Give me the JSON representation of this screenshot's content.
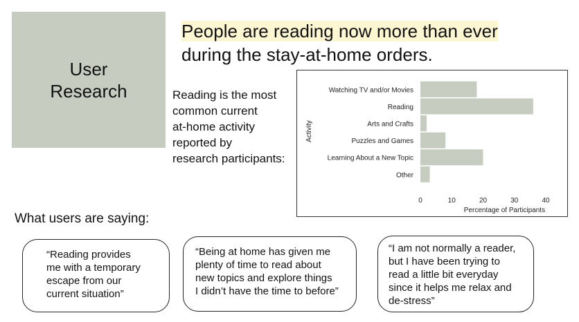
{
  "title_box": {
    "line1": "User",
    "line2": "Research"
  },
  "headline": {
    "line1": "People are reading now more than ever",
    "line2": "during the stay-at-home orders."
  },
  "summary": {
    "lines": [
      "Reading is the most",
      "common current",
      "at-home activity",
      "reported by",
      "research participants:"
    ]
  },
  "section_label": "What users are saying:",
  "quotes": [
    {
      "lines": [
        "“Reading provides",
        "me with a temporary",
        "escape from our",
        "current situation”"
      ]
    },
    {
      "lines": [
        "“Being at home has given me",
        "plenty of time to read about",
        "new topics and explore things",
        "I didn’t have the time to before”"
      ]
    },
    {
      "lines": [
        "“I am not normally a reader,",
        "but I have been trying to",
        "read a little bit everyday",
        "since it helps me relax and",
        "de-stress”"
      ]
    }
  ],
  "colors": {
    "title_box": "#c6cdc0",
    "bar": "#c6cdc0",
    "highlight": "#fdf6d3"
  },
  "chart_data": {
    "type": "bar",
    "orientation": "horizontal",
    "categories": [
      "Watching TV and/or Movies",
      "Reading",
      "Arts and Crafts",
      "Puzzles and Games",
      "Learning About a New Topic",
      "Other"
    ],
    "values": [
      18,
      36,
      2,
      8,
      20,
      3
    ],
    "xlabel": "Percentage of Participants",
    "ylabel": "Activity",
    "xticks": [
      "0",
      "10",
      "20",
      "30",
      "40"
    ],
    "xlim": [
      0,
      40
    ],
    "grid": false,
    "legend": "none"
  }
}
